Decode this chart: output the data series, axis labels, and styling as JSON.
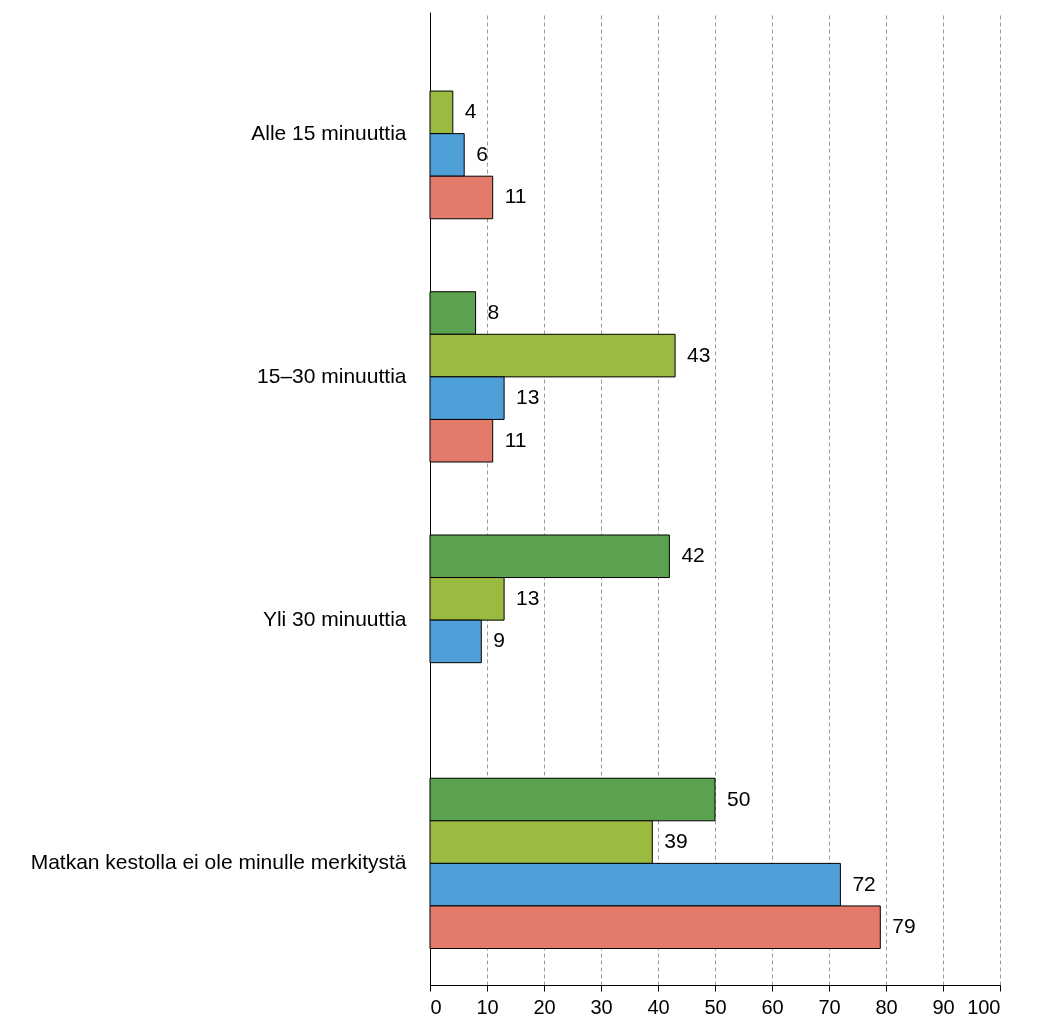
{
  "chart_data": {
    "type": "bar",
    "orientation": "horizontal",
    "categories": [
      "Alle 15 minuuttia",
      "15–30 minuuttia",
      "Yli 30 minuuttia",
      "Matkan kestolla ei ole minulle merkitystä"
    ],
    "series": [
      {
        "color": "#5ba150",
        "values": [
          null,
          8,
          42,
          50
        ]
      },
      {
        "color": "#9bbb40",
        "values": [
          4,
          43,
          13,
          39
        ]
      },
      {
        "color": "#4f9fd8",
        "values": [
          6,
          13,
          9,
          72
        ]
      },
      {
        "color": "#e47a6a",
        "values": [
          11,
          11,
          null,
          79
        ]
      }
    ],
    "xlim": [
      0,
      100
    ],
    "xticks": [
      0,
      10,
      20,
      30,
      40,
      50,
      60,
      70,
      80,
      90,
      100
    ],
    "grid": "x",
    "data_labels": true,
    "legend": false
  }
}
